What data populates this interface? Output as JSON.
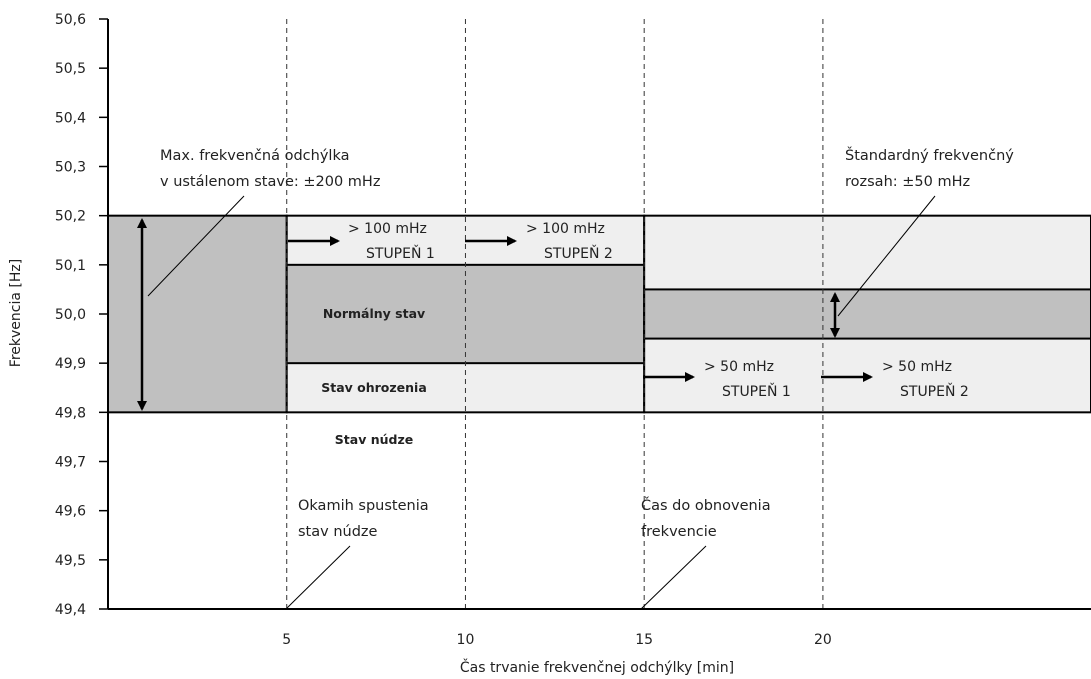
{
  "chart_data": {
    "type": "area",
    "title": "",
    "xlabel": "Čas trvanie frekvenčnej odchýlky [min]",
    "ylabel": "Frekvencia [Hz]",
    "xlim": [
      0,
      27.5
    ],
    "ylim": [
      49.4,
      50.6
    ],
    "x_ticks": [
      5,
      10,
      15,
      20
    ],
    "x_tick_labels": [
      "5",
      "10",
      "15",
      "20"
    ],
    "y_ticks": [
      49.4,
      49.5,
      49.6,
      49.7,
      49.8,
      49.9,
      50.0,
      50.1,
      50.2,
      50.3,
      50.4,
      50.5,
      50.6
    ],
    "y_tick_labels": [
      "49,4",
      "49,5",
      "49,6",
      "49,7",
      "49,8",
      "49,9",
      "50,0",
      "50,1",
      "50,2",
      "50,3",
      "50,4",
      "50,5",
      "50,6"
    ],
    "vertical_guides": [
      5,
      10,
      15,
      20
    ],
    "colors": {
      "dark_band": "#c0c0c0",
      "light_band": "#efefef",
      "line": "#000000"
    },
    "bands": [
      {
        "x": [
          0,
          5
        ],
        "y": [
          49.8,
          50.2
        ],
        "fill": "dark"
      },
      {
        "x": [
          5,
          15
        ],
        "y": [
          49.8,
          50.2
        ],
        "fill": "light"
      },
      {
        "x": [
          5,
          15
        ],
        "y": [
          49.9,
          50.1
        ],
        "fill": "dark"
      },
      {
        "x": [
          15,
          27.5
        ],
        "y": [
          49.8,
          50.2
        ],
        "fill": "light"
      },
      {
        "x": [
          15,
          27.5
        ],
        "y": [
          49.95,
          50.05
        ],
        "fill": "dark"
      }
    ],
    "state_labels": [
      "Normálny stav",
      "Stav ohrozenia",
      "Stav núdze"
    ],
    "step_labels": [
      {
        "text": "> 100 mHz",
        "stage": "STUPEŇ 1"
      },
      {
        "text": "> 100 mHz",
        "stage": "STUPEŇ 2"
      },
      {
        "text": "> 50 mHz",
        "stage": "STUPEŇ 1"
      },
      {
        "text": "> 50 mHz",
        "stage": "STUPEŇ 2"
      }
    ],
    "annotations": [
      {
        "lines": [
          "Max. frekvenčná odchýlka",
          "v ustálenom stave: ±200 mHz"
        ]
      },
      {
        "lines": [
          "Štandardný frekvenčný",
          "rozsah: ±50 mHz"
        ]
      },
      {
        "lines": [
          "Okamih spustenia",
          "stav núdze"
        ]
      },
      {
        "lines": [
          "Čas do obnovenia",
          "frekvencie"
        ]
      }
    ]
  }
}
